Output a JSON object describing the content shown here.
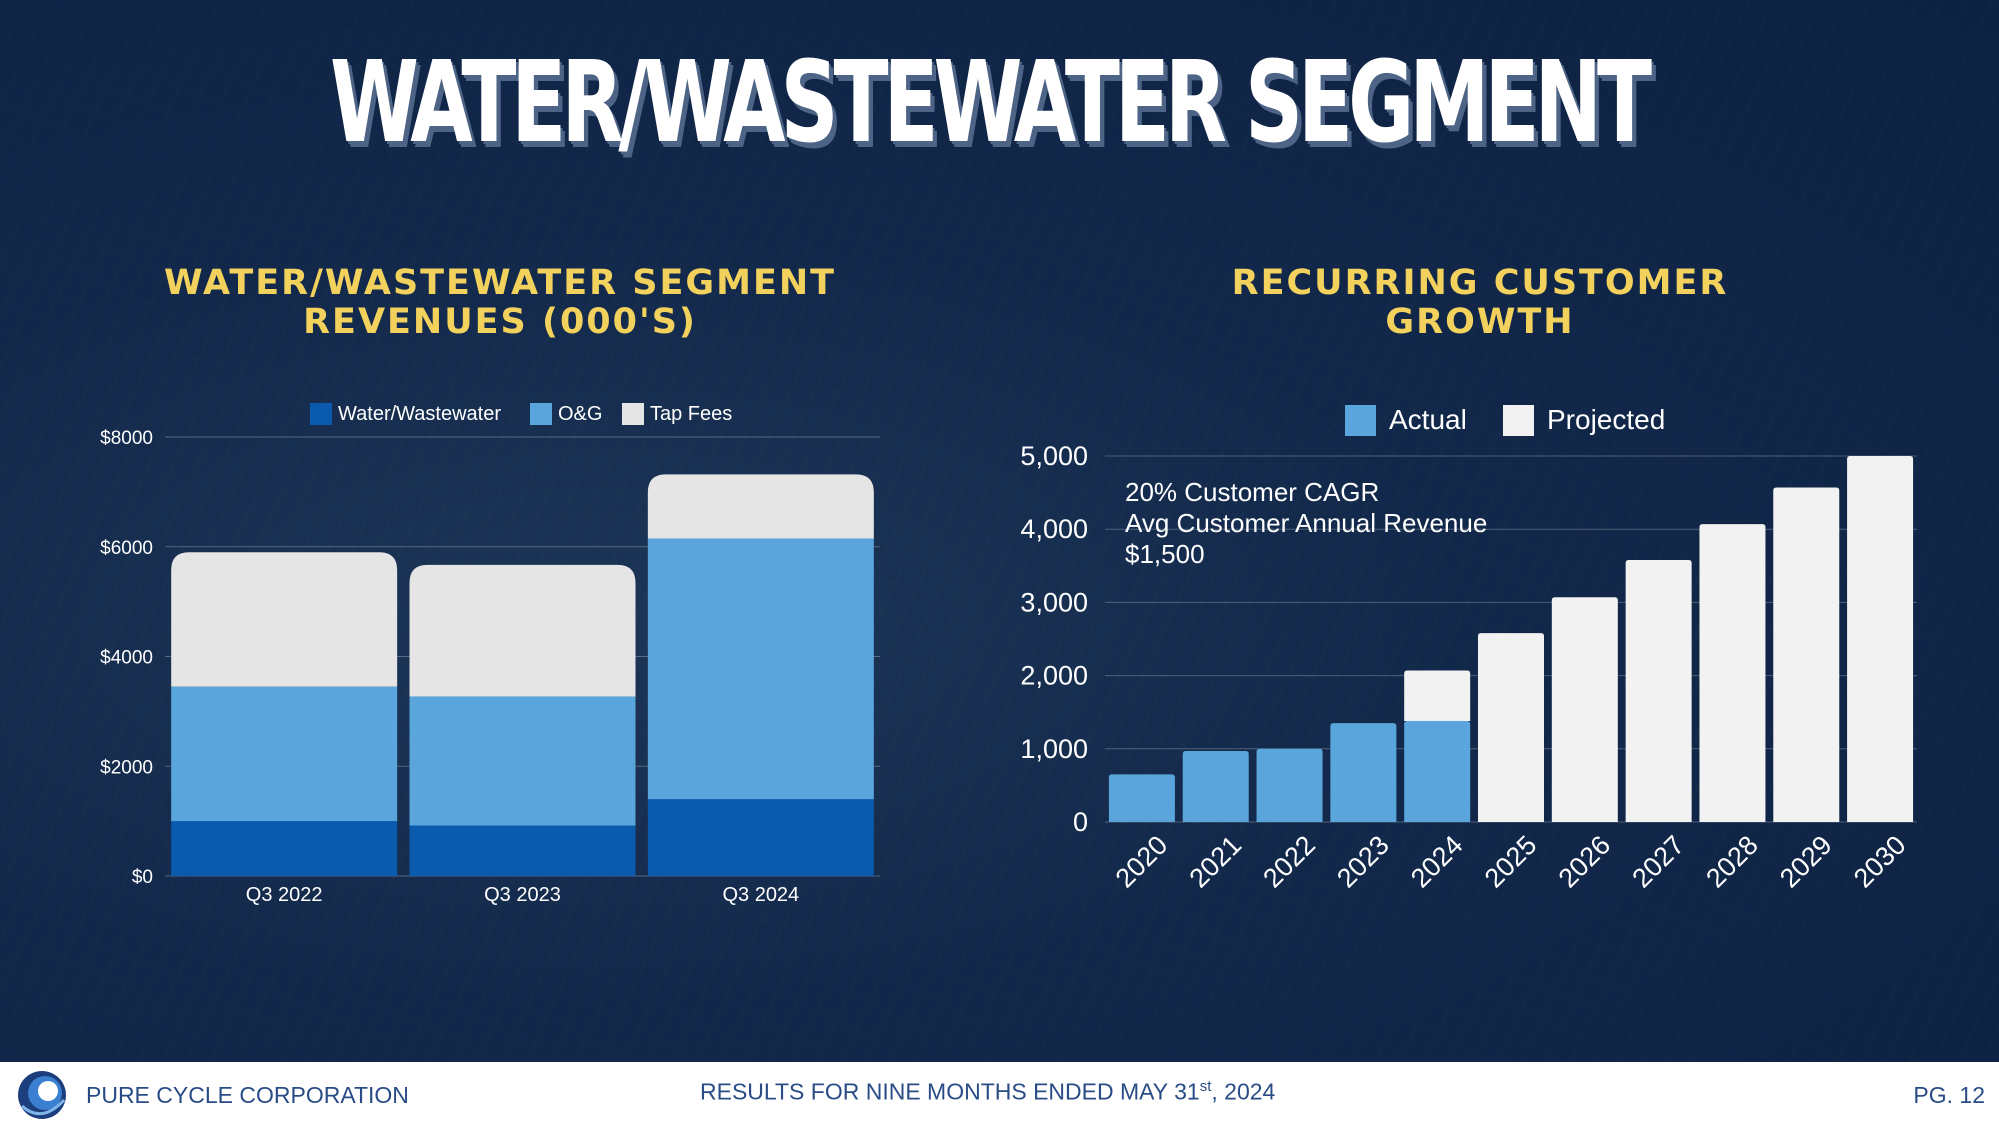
{
  "slide": {
    "title": "WATER/WASTEWATER SEGMENT"
  },
  "footer": {
    "company": "PURE CYCLE CORPORATION",
    "results_prefix": "RESULTS FOR NINE MONTHS ENDED MAY 31",
    "results_sup": "st",
    "results_suffix": ", 2024",
    "page": "PG. 12"
  },
  "chart_data": [
    {
      "type": "bar",
      "stacked": true,
      "title_line1": "WATER/WASTEWATER SEGMENT",
      "title_line2": "REVENUES (000'S)",
      "categories": [
        "Q3 2022",
        "Q3 2023",
        "Q3 2024"
      ],
      "series": [
        {
          "name": "Water/Wastewater",
          "color": "#0a5aae",
          "values": [
            1000,
            920,
            1400
          ]
        },
        {
          "name": "O&G",
          "color": "#5aa6dc",
          "values": [
            2450,
            2350,
            4750
          ]
        },
        {
          "name": "Tap Fees",
          "color": "#e5e5e5",
          "values": [
            2450,
            2400,
            1170
          ]
        }
      ],
      "ylim": [
        0,
        8000
      ],
      "yticks": [
        0,
        2000,
        4000,
        6000,
        8000
      ],
      "ytick_labels": [
        "$0",
        "$2000",
        "$4000",
        "$6000",
        "$8000"
      ],
      "legend": "top"
    },
    {
      "type": "bar",
      "stacked": true,
      "title": "RECURRING CUSTOMER GROWTH",
      "categories": [
        "2020",
        "2021",
        "2022",
        "2023",
        "2024",
        "2025",
        "2026",
        "2027",
        "2028",
        "2029",
        "2030"
      ],
      "series": [
        {
          "name": "Actual",
          "color": "#5aa6dc",
          "values": [
            650,
            970,
            1000,
            1350,
            1380,
            0,
            0,
            0,
            0,
            0,
            0
          ]
        },
        {
          "name": "Projected",
          "color": "#f2f2f2",
          "values": [
            0,
            0,
            0,
            0,
            690,
            2580,
            3070,
            3580,
            4070,
            4570,
            5000
          ]
        }
      ],
      "ylim": [
        0,
        5000
      ],
      "yticks": [
        0,
        1000,
        2000,
        3000,
        4000,
        5000
      ],
      "ytick_labels": [
        "0",
        "1,000",
        "2,000",
        "3,000",
        "4,000",
        "5,000"
      ],
      "annotation": [
        "20% Customer CAGR",
        "Avg Customer Annual Revenue",
        "$1,500"
      ],
      "legend": "top"
    }
  ]
}
